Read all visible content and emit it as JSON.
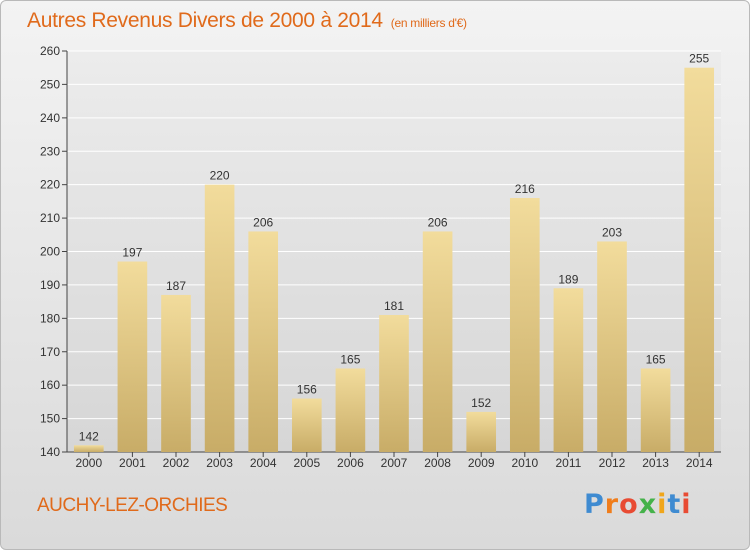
{
  "title": "Autres Revenus Divers de 2000 à 2014",
  "title_unit": "(en milliers d'€)",
  "place": "AUCHY-LEZ-ORCHIES",
  "logo": {
    "text": "Proxiti",
    "letter_colors": [
      "#3f8bd1",
      "#f07d1b",
      "#e84b33",
      "#45b24a",
      "#f0a61b",
      "#3f8bd1",
      "#e84b33"
    ]
  },
  "colors": {
    "title": "#e06a1b",
    "bar_light": "#f2dc9c",
    "bar_dark": "#c8ac67"
  },
  "chart_data": {
    "type": "bar",
    "title": "Autres Revenus Divers de 2000 à 2014",
    "xlabel": "",
    "ylabel": "",
    "categories": [
      "2000",
      "2001",
      "2002",
      "2003",
      "2004",
      "2005",
      "2006",
      "2007",
      "2008",
      "2009",
      "2010",
      "2011",
      "2012",
      "2013",
      "2014"
    ],
    "values": [
      142,
      197,
      187,
      220,
      206,
      156,
      165,
      181,
      206,
      152,
      216,
      189,
      203,
      165,
      255
    ],
    "ylim": [
      140,
      260
    ],
    "yticks": [
      140,
      150,
      160,
      170,
      180,
      190,
      200,
      210,
      220,
      230,
      240,
      250,
      260
    ],
    "grid": true,
    "data_labels": true
  }
}
